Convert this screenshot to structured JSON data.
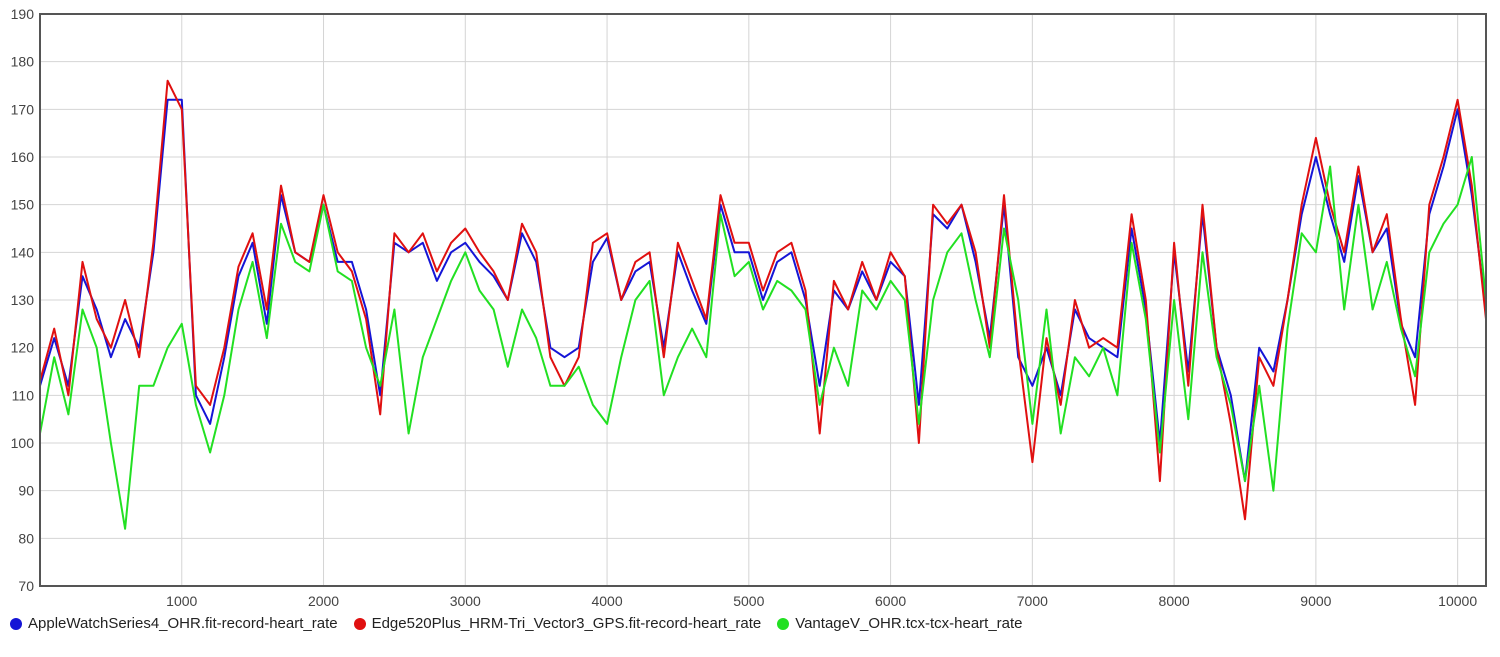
{
  "chart_data": {
    "type": "line",
    "title": "",
    "xlabel": "",
    "ylabel": "",
    "xlim": [
      0,
      10200
    ],
    "ylim": [
      70,
      190
    ],
    "x_ticks": [
      1000,
      2000,
      3000,
      4000,
      5000,
      6000,
      7000,
      8000,
      9000,
      10000
    ],
    "y_ticks": [
      70,
      80,
      90,
      100,
      110,
      120,
      130,
      140,
      150,
      160,
      170,
      180,
      190
    ],
    "grid": true,
    "legend_position": "bottom-left",
    "x": [
      0,
      100,
      200,
      300,
      400,
      500,
      600,
      700,
      800,
      900,
      1000,
      1100,
      1200,
      1300,
      1400,
      1500,
      1600,
      1700,
      1800,
      1900,
      2000,
      2100,
      2200,
      2300,
      2400,
      2500,
      2600,
      2700,
      2800,
      2900,
      3000,
      3100,
      3200,
      3300,
      3400,
      3500,
      3600,
      3700,
      3800,
      3900,
      4000,
      4100,
      4200,
      4300,
      4400,
      4500,
      4600,
      4700,
      4800,
      4900,
      5000,
      5100,
      5200,
      5300,
      5400,
      5500,
      5600,
      5700,
      5800,
      5900,
      6000,
      6100,
      6200,
      6300,
      6400,
      6500,
      6600,
      6700,
      6800,
      6900,
      7000,
      7100,
      7200,
      7300,
      7400,
      7500,
      7600,
      7700,
      7800,
      7900,
      8000,
      8100,
      8200,
      8300,
      8400,
      8500,
      8600,
      8700,
      8800,
      8900,
      9000,
      9100,
      9200,
      9300,
      9400,
      9500,
      9600,
      9700,
      9800,
      9900,
      10000,
      10100,
      10200
    ],
    "series": [
      {
        "name": "AppleWatchSeries4_OHR.fit-record-heart_rate",
        "color": "#1515d6",
        "values": [
          112,
          122,
          112,
          135,
          128,
          118,
          126,
          120,
          140,
          172,
          172,
          110,
          104,
          118,
          135,
          142,
          125,
          152,
          140,
          138,
          150,
          138,
          138,
          128,
          110,
          142,
          140,
          142,
          134,
          140,
          142,
          138,
          135,
          130,
          144,
          138,
          120,
          118,
          120,
          138,
          143,
          130,
          136,
          138,
          120,
          140,
          132,
          125,
          150,
          140,
          140,
          130,
          138,
          140,
          130,
          112,
          132,
          128,
          136,
          130,
          138,
          135,
          108,
          148,
          145,
          150,
          138,
          122,
          150,
          118,
          112,
          120,
          110,
          128,
          122,
          120,
          118,
          145,
          128,
          100,
          140,
          115,
          148,
          120,
          110,
          92,
          120,
          115,
          130,
          148,
          160,
          148,
          138,
          156,
          140,
          145,
          125,
          118,
          148,
          158,
          170,
          152,
          128
        ]
      },
      {
        "name": "Edge520Plus_HRM-Tri_Vector3_GPS.fit-record-heart_rate",
        "color": "#e01010",
        "values": [
          113,
          124,
          110,
          138,
          126,
          120,
          130,
          118,
          142,
          176,
          170,
          112,
          108,
          120,
          137,
          144,
          128,
          154,
          140,
          138,
          152,
          140,
          136,
          126,
          106,
          144,
          140,
          144,
          136,
          142,
          145,
          140,
          136,
          130,
          146,
          140,
          118,
          112,
          118,
          142,
          144,
          130,
          138,
          140,
          118,
          142,
          134,
          126,
          152,
          142,
          142,
          132,
          140,
          142,
          132,
          102,
          134,
          128,
          138,
          130,
          140,
          135,
          100,
          150,
          146,
          150,
          140,
          120,
          152,
          120,
          96,
          122,
          108,
          130,
          120,
          122,
          120,
          148,
          130,
          92,
          142,
          112,
          150,
          120,
          104,
          84,
          118,
          112,
          130,
          150,
          164,
          150,
          140,
          158,
          140,
          148,
          126,
          108,
          150,
          160,
          172,
          154,
          126
        ]
      },
      {
        "name": "VantageV_OHR.tcx-tcx-heart_rate",
        "color": "#22e022",
        "values": [
          102,
          118,
          106,
          128,
          120,
          100,
          82,
          112,
          112,
          120,
          125,
          108,
          98,
          110,
          128,
          138,
          122,
          146,
          138,
          136,
          150,
          136,
          134,
          120,
          112,
          128,
          102,
          118,
          126,
          134,
          140,
          132,
          128,
          116,
          128,
          122,
          112,
          112,
          116,
          108,
          104,
          118,
          130,
          134,
          110,
          118,
          124,
          118,
          148,
          135,
          138,
          128,
          134,
          132,
          128,
          108,
          120,
          112,
          132,
          128,
          134,
          130,
          104,
          130,
          140,
          144,
          130,
          118,
          145,
          130,
          104,
          128,
          102,
          118,
          114,
          120,
          110,
          142,
          126,
          98,
          130,
          105,
          140,
          118,
          108,
          92,
          112,
          90,
          124,
          144,
          140,
          158,
          128,
          150,
          128,
          138,
          124,
          114,
          140,
          146,
          150,
          160,
          130
        ]
      }
    ]
  }
}
